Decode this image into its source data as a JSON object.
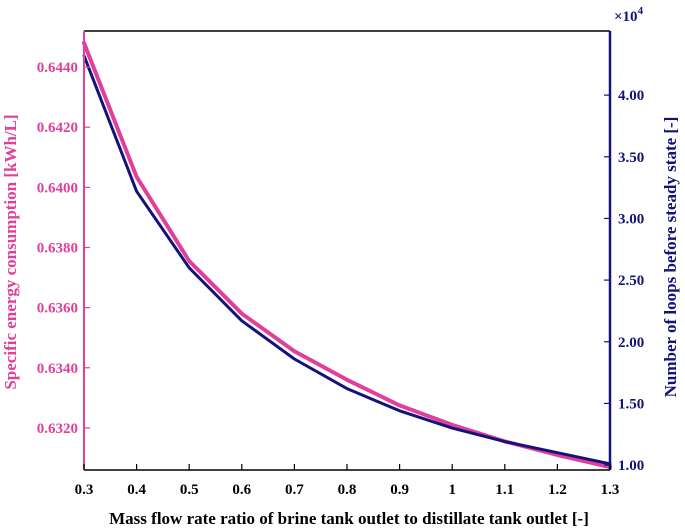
{
  "chart_data": {
    "type": "line",
    "xlabel": "Mass flow rate ratio of brine tank outlet to distillate tank outlet [-]",
    "ylabel_left": "Specific energy consumption [kWh/L]",
    "ylabel_right": "Number of loops before steady state [-]",
    "right_exponent": "×10",
    "right_exponent_power": "4",
    "xlim": [
      0.3,
      1.3
    ],
    "ylim_left": [
      0.6306,
      0.6452
    ],
    "ylim_right": [
      0.96,
      4.52
    ],
    "x_ticks": [
      "0.3",
      "0.4",
      "0.5",
      "0.6",
      "0.7",
      "0.8",
      "0.9",
      "1",
      "1.1",
      "1.2",
      "1.3"
    ],
    "x_tick_values": [
      0.3,
      0.4,
      0.5,
      0.6,
      0.7,
      0.8,
      0.9,
      1.0,
      1.1,
      1.2,
      1.3
    ],
    "y_left_ticks": [
      "0.6320",
      "0.6340",
      "0.6360",
      "0.6380",
      "0.6400",
      "0.6420",
      "0.6440"
    ],
    "y_left_tick_values": [
      0.632,
      0.634,
      0.636,
      0.638,
      0.64,
      0.642,
      0.644
    ],
    "y_right_ticks": [
      "1.00",
      "1.50",
      "2.00",
      "2.50",
      "3.00",
      "3.50",
      "4.00"
    ],
    "y_right_tick_values": [
      1.0,
      1.5,
      2.0,
      2.5,
      3.0,
      3.5,
      4.0
    ],
    "grid": false,
    "colors": {
      "left": "#e0409a",
      "right": "#13137a"
    },
    "series": [
      {
        "axis": "left",
        "x": [
          0.3,
          0.4,
          0.5,
          0.6,
          0.7,
          0.8,
          0.9,
          1.0,
          1.1,
          1.2,
          1.3
        ],
        "values": [
          0.6448,
          0.64035,
          0.63755,
          0.6358,
          0.63455,
          0.6336,
          0.63275,
          0.6321,
          0.63155,
          0.6311,
          0.6307
        ]
      },
      {
        "axis": "right",
        "x": [
          0.3,
          0.4,
          0.5,
          0.6,
          0.7,
          0.8,
          0.9,
          1.0,
          1.1,
          1.2,
          1.3
        ],
        "values": [
          4.32,
          3.22,
          2.6,
          2.17,
          1.86,
          1.62,
          1.44,
          1.3,
          1.19,
          1.1,
          1.01
        ]
      }
    ]
  }
}
